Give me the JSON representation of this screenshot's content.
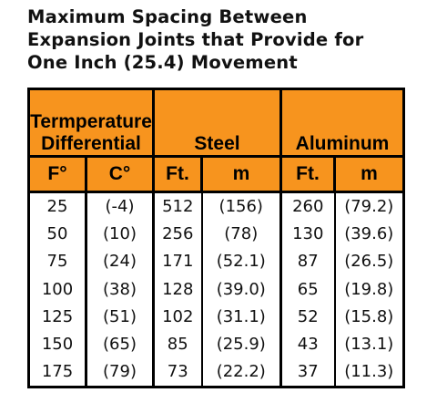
{
  "title_lines": [
    "Maximum Spacing Between",
    "Expansion Joints that Provide for",
    "One Inch (25.4) Movement"
  ],
  "table": {
    "group_headers": {
      "temperature_line1": "Termperature",
      "temperature_line2": "Differential",
      "steel": "Steel",
      "aluminum": "Aluminum"
    },
    "sub_headers": [
      "F°",
      "C°",
      "Ft.",
      "m",
      "Ft.",
      "m"
    ],
    "columns": {
      "temp_f": [
        "25",
        "50",
        "75",
        "100",
        "125",
        "150",
        "175"
      ],
      "temp_c": [
        "(-4)",
        "(10)",
        "(24)",
        "(38)",
        "(51)",
        "(65)",
        "(79)"
      ],
      "steel_ft": [
        "512",
        "256",
        "171",
        "128",
        "102",
        "85",
        "73"
      ],
      "steel_m": [
        "(156)",
        "(78)",
        "(52.1)",
        "(39.0)",
        "(31.1)",
        "(25.9)",
        "(22.2)"
      ],
      "alum_ft": [
        "260",
        "130",
        "87",
        "65",
        "52",
        "43",
        "37"
      ],
      "alum_m": [
        "(79.2)",
        "(39.6)",
        "(26.5)",
        "(19.8)",
        "(15.8)",
        "(13.1)",
        "(11.3)"
      ]
    }
  },
  "colors": {
    "header_orange": "#f7941e",
    "border": "#000000",
    "text": "#111111"
  }
}
